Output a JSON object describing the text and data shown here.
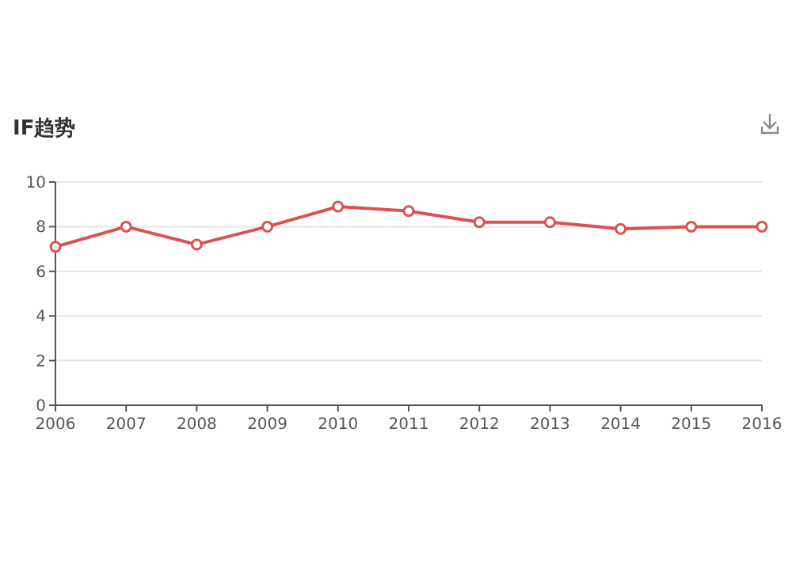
{
  "chart_data": {
    "type": "line",
    "title": "IF趋势",
    "x": [
      2006,
      2007,
      2008,
      2009,
      2010,
      2011,
      2012,
      2013,
      2014,
      2015,
      2016
    ],
    "series": [
      {
        "color": "#d9534f",
        "values": [
          7.1,
          8.0,
          7.2,
          8.0,
          8.9,
          8.7,
          8.2,
          8.2,
          7.9,
          8.0,
          8.0
        ]
      }
    ],
    "xlim": [
      2006,
      2016
    ],
    "xticks": [
      2006,
      2007,
      2008,
      2009,
      2010,
      2011,
      2012,
      2013,
      2014,
      2015,
      2016
    ],
    "ylim": [
      0,
      10
    ],
    "yticks": [
      0,
      2,
      4,
      6,
      8,
      10
    ],
    "grid": "y",
    "marker": "circle",
    "line_style": "solid"
  }
}
